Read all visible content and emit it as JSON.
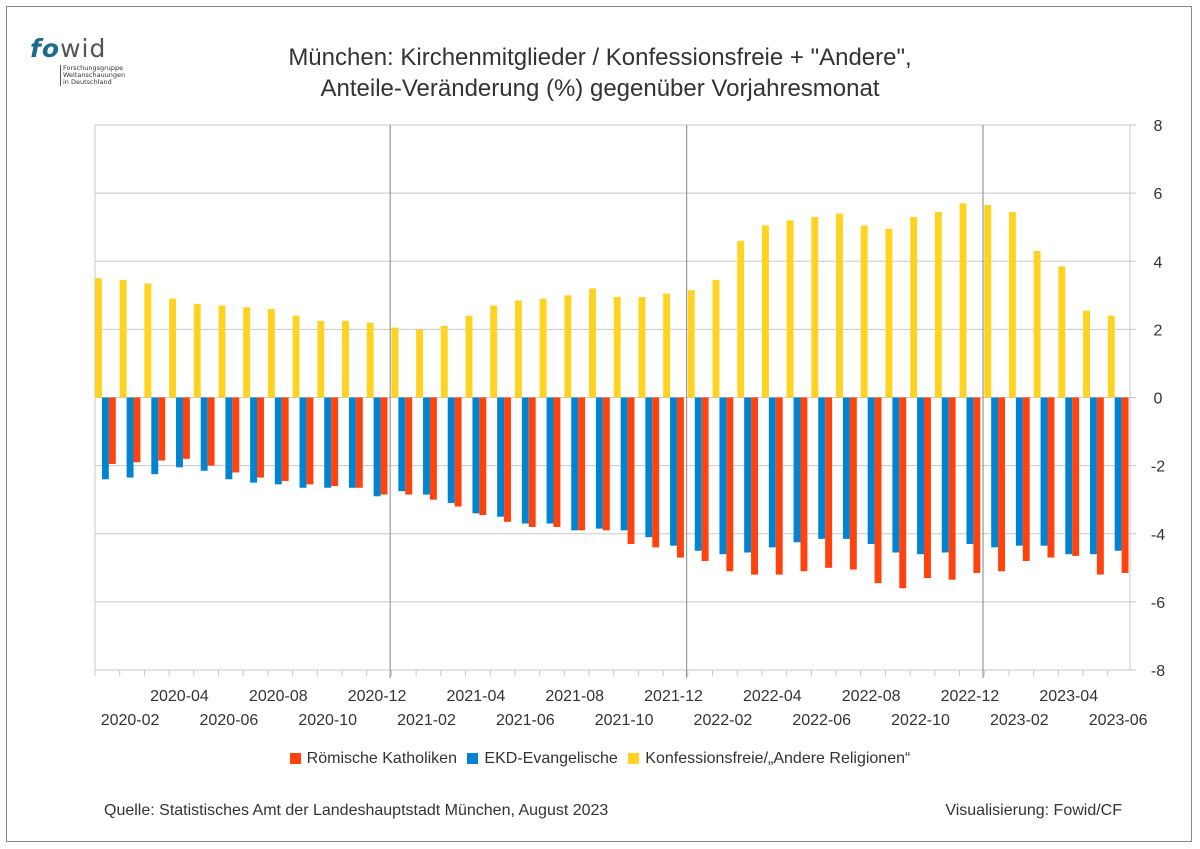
{
  "logo": {
    "fo": "fo",
    "wid": "wid",
    "subtitle": [
      "Forschungsgruppe",
      "Weltanschauungen",
      "in Deutschland"
    ]
  },
  "title_line1": "München: Kirchenmitglieder / Konfessionsfreie + \"Andere\",",
  "title_line2": "Anteile-Veränderung (%) gegenüber Vorjahresmonat",
  "source": "Quelle: Statistisches Amt der Landeshauptstadt München, August 2023",
  "credit": "Visualisierung: Fowid/CF",
  "colors": {
    "katholiken": "#ff420e",
    "evangelische": "#0084d1",
    "konfessionsfreie": "#ffd320",
    "grid": "#c8c8c8",
    "year_line": "#999999"
  },
  "chart_data": {
    "type": "bar",
    "title": "München: Kirchenmitglieder / Konfessionsfreie + \"Andere\", Anteile-Veränderung (%) gegenüber Vorjahresmonat",
    "xlabel": "",
    "ylabel": "",
    "ylim": [
      -8,
      8
    ],
    "yticks": [
      8,
      6,
      4,
      2,
      0,
      -2,
      -4,
      -6,
      -8
    ],
    "y_axis_side": "right",
    "grid": true,
    "legend_position": "bottom",
    "categories": [
      "2020-01",
      "2020-02",
      "2020-03",
      "2020-04",
      "2020-05",
      "2020-06",
      "2020-07",
      "2020-08",
      "2020-09",
      "2020-10",
      "2020-11",
      "2020-12",
      "2021-01",
      "2021-02",
      "2021-03",
      "2021-04",
      "2021-05",
      "2021-06",
      "2021-07",
      "2021-08",
      "2021-09",
      "2021-10",
      "2021-11",
      "2021-12",
      "2022-01",
      "2022-02",
      "2022-03",
      "2022-04",
      "2022-05",
      "2022-06",
      "2022-07",
      "2022-08",
      "2022-09",
      "2022-10",
      "2022-11",
      "2022-12",
      "2023-01",
      "2023-02",
      "2023-03",
      "2023-04",
      "2023-05",
      "2023-06"
    ],
    "tick_labels_upper": [
      "2020-04",
      "2020-08",
      "2020-12",
      "2021-04",
      "2021-08",
      "2021-12",
      "2022-04",
      "2022-08",
      "2022-12",
      "2023-04"
    ],
    "tick_labels_lower": [
      "2020-02",
      "2020-06",
      "2020-10",
      "2021-02",
      "2021-06",
      "2021-10",
      "2022-02",
      "2022-06",
      "2022-10",
      "2023-02",
      "2023-06"
    ],
    "series": [
      {
        "name": "Konfessionsfreie/„Andere Religionen“",
        "key": "konfessionsfreie",
        "values": [
          3.5,
          3.45,
          3.35,
          2.9,
          2.75,
          2.7,
          2.65,
          2.6,
          2.4,
          2.25,
          2.25,
          2.2,
          2.05,
          2.0,
          2.1,
          2.4,
          2.7,
          2.85,
          2.9,
          3.0,
          3.2,
          2.95,
          2.95,
          3.05,
          3.15,
          3.45,
          4.6,
          5.05,
          5.2,
          5.3,
          5.4,
          5.05,
          4.95,
          5.3,
          5.45,
          5.7,
          5.65,
          5.45,
          4.3,
          3.85,
          2.55,
          2.4
        ]
      },
      {
        "name": "EKD-Evangelische",
        "key": "evangelische",
        "values": [
          -2.4,
          -2.35,
          -2.25,
          -2.05,
          -2.15,
          -2.4,
          -2.5,
          -2.55,
          -2.65,
          -2.65,
          -2.65,
          -2.9,
          -2.75,
          -2.85,
          -3.1,
          -3.4,
          -3.5,
          -3.7,
          -3.7,
          -3.9,
          -3.85,
          -3.9,
          -4.1,
          -4.35,
          -4.5,
          -4.6,
          -4.55,
          -4.4,
          -4.25,
          -4.15,
          -4.15,
          -4.3,
          -4.55,
          -4.6,
          -4.55,
          -4.3,
          -4.4,
          -4.35,
          -4.35,
          -4.6,
          -4.6,
          -4.5
        ]
      },
      {
        "name": "Römische Katholiken",
        "key": "katholiken",
        "values": [
          -1.95,
          -1.9,
          -1.85,
          -1.8,
          -2.0,
          -2.2,
          -2.35,
          -2.45,
          -2.55,
          -2.6,
          -2.65,
          -2.85,
          -2.85,
          -3.0,
          -3.2,
          -3.45,
          -3.65,
          -3.8,
          -3.8,
          -3.9,
          -3.9,
          -4.3,
          -4.4,
          -4.7,
          -4.8,
          -5.1,
          -5.2,
          -5.2,
          -5.1,
          -5.0,
          -5.05,
          -5.45,
          -5.6,
          -5.3,
          -5.35,
          -5.15,
          -5.1,
          -4.8,
          -4.7,
          -4.65,
          -5.2,
          -5.15
        ]
      }
    ],
    "legend": [
      "Römische Katholiken",
      "EKD-Evangelische",
      "Konfessionsfreie/„Andere Religionen“"
    ]
  }
}
